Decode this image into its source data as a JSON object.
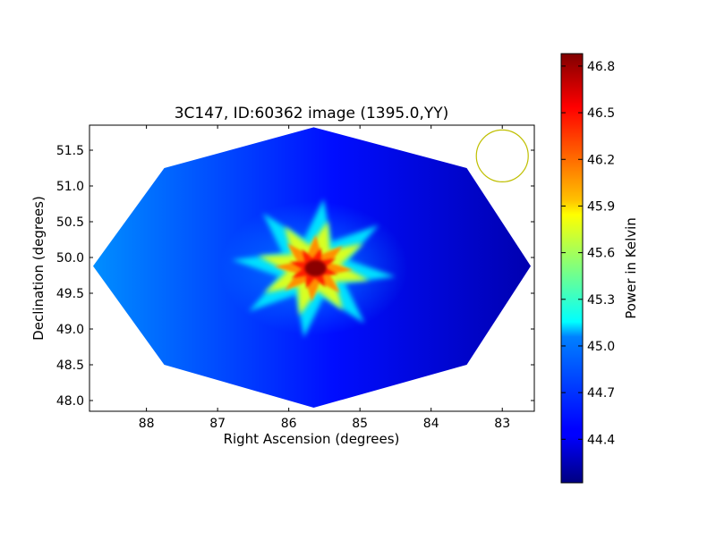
{
  "chart_data": {
    "type": "heatmap",
    "title": "3C147, ID:60362 image (1395.0,YY)",
    "xlabel": "Right Ascension (degrees)",
    "ylabel": "Declination (degrees)",
    "xlim": [
      88.8,
      82.55
    ],
    "ylim": [
      47.85,
      51.85
    ],
    "x_inverted": true,
    "xticks": [
      88,
      87,
      86,
      85,
      84,
      83
    ],
    "xtick_labels": [
      "88",
      "87",
      "86",
      "85",
      "84",
      "83"
    ],
    "yticks": [
      48.0,
      48.5,
      49.0,
      49.5,
      50.0,
      50.5,
      51.0,
      51.5
    ],
    "ytick_labels": [
      "48.0",
      "48.5",
      "49.0",
      "49.5",
      "50.0",
      "50.5",
      "51.0",
      "51.5"
    ],
    "grid": false,
    "colormap": "jet",
    "field_polygon": [
      [
        85.65,
        51.82
      ],
      [
        87.75,
        51.25
      ],
      [
        88.75,
        49.88
      ],
      [
        87.75,
        48.5
      ],
      [
        85.65,
        47.9
      ],
      [
        83.5,
        48.5
      ],
      [
        82.6,
        49.88
      ],
      [
        83.5,
        51.25
      ]
    ],
    "background_level": 44.65,
    "gradient": {
      "east_value": 44.85,
      "west_value": 44.25
    },
    "source": {
      "name": "3C147",
      "ra": 85.65,
      "dec": 49.85,
      "peak": 46.85
    },
    "beam_marker": {
      "ra": 83.0,
      "dec": 51.42,
      "color": "#bfbf00"
    },
    "colorbar": {
      "label": "Power in Kelvin",
      "min": 44.12,
      "max": 46.88,
      "ticks": [
        44.4,
        44.7,
        45.0,
        45.3,
        45.6,
        45.9,
        46.2,
        46.5,
        46.8
      ],
      "tick_labels": [
        "44.4",
        "44.7",
        "45.0",
        "45.3",
        "45.6",
        "45.9",
        "46.2",
        "46.5",
        "46.8"
      ]
    }
  }
}
